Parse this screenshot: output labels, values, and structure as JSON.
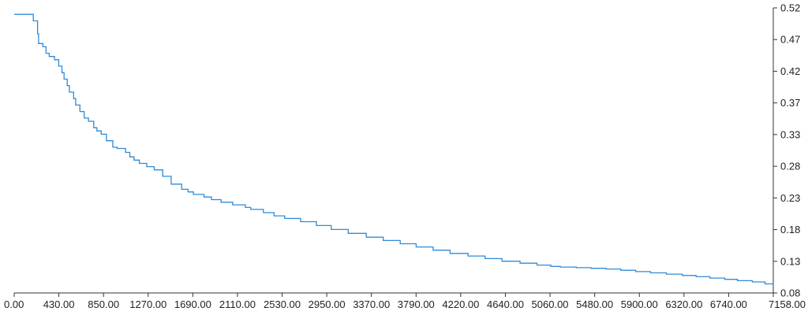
{
  "chart_data": {
    "type": "line",
    "title": "",
    "xlabel": "",
    "ylabel": "",
    "grid": false,
    "legend": "none",
    "y_axis_side": "right",
    "line_color": "#2f8ad8",
    "xlim": [
      0,
      7158
    ],
    "ylim": [
      0.08,
      0.52
    ],
    "x_ticks": [
      "0.00",
      "430.00",
      "850.00",
      "1270.00",
      "1690.00",
      "2110.00",
      "2530.00",
      "2950.00",
      "3370.00",
      "3790.00",
      "4220.00",
      "4640.00",
      "5060.00",
      "5480.00",
      "5900.00",
      "6320.00",
      "6740.00",
      "7158.00"
    ],
    "y_ticks": [
      "0.52",
      "0.47",
      "0.42",
      "0.37",
      "0.33",
      "0.28",
      "0.23",
      "0.18",
      "0.13",
      "0.08"
    ],
    "series": [
      {
        "x": [
          0,
          180,
          180,
          220,
          230,
          270,
          300,
          330,
          380,
          420,
          450,
          470,
          500,
          520,
          560,
          580,
          620,
          660,
          700,
          750,
          780,
          820,
          870,
          930,
          970,
          1050,
          1090,
          1130,
          1180,
          1250,
          1320,
          1400,
          1480,
          1580,
          1640,
          1690,
          1790,
          1860,
          1950,
          2060,
          2180,
          2230,
          2350,
          2450,
          2550,
          2700,
          2850,
          2990,
          3150,
          3320,
          3480,
          3640,
          3790,
          3950,
          4110,
          4280,
          4440,
          4600,
          4770,
          4930,
          5060,
          5150,
          5300,
          5440,
          5580,
          5720,
          5860,
          6000,
          6150,
          6300,
          6430,
          6560,
          6700,
          6820,
          6960,
          7080,
          7158
        ],
        "y": [
          0.51,
          0.51,
          0.5,
          0.48,
          0.465,
          0.46,
          0.45,
          0.445,
          0.44,
          0.43,
          0.42,
          0.41,
          0.4,
          0.39,
          0.38,
          0.37,
          0.36,
          0.35,
          0.345,
          0.335,
          0.33,
          0.325,
          0.315,
          0.305,
          0.303,
          0.297,
          0.29,
          0.285,
          0.28,
          0.275,
          0.27,
          0.26,
          0.248,
          0.24,
          0.236,
          0.232,
          0.228,
          0.224,
          0.22,
          0.216,
          0.212,
          0.209,
          0.204,
          0.199,
          0.195,
          0.19,
          0.184,
          0.178,
          0.172,
          0.166,
          0.161,
          0.156,
          0.151,
          0.146,
          0.141,
          0.137,
          0.133,
          0.129,
          0.126,
          0.123,
          0.121,
          0.12,
          0.119,
          0.118,
          0.117,
          0.115,
          0.113,
          0.111,
          0.109,
          0.107,
          0.105,
          0.103,
          0.101,
          0.099,
          0.097,
          0.094,
          0.092
        ]
      }
    ]
  }
}
